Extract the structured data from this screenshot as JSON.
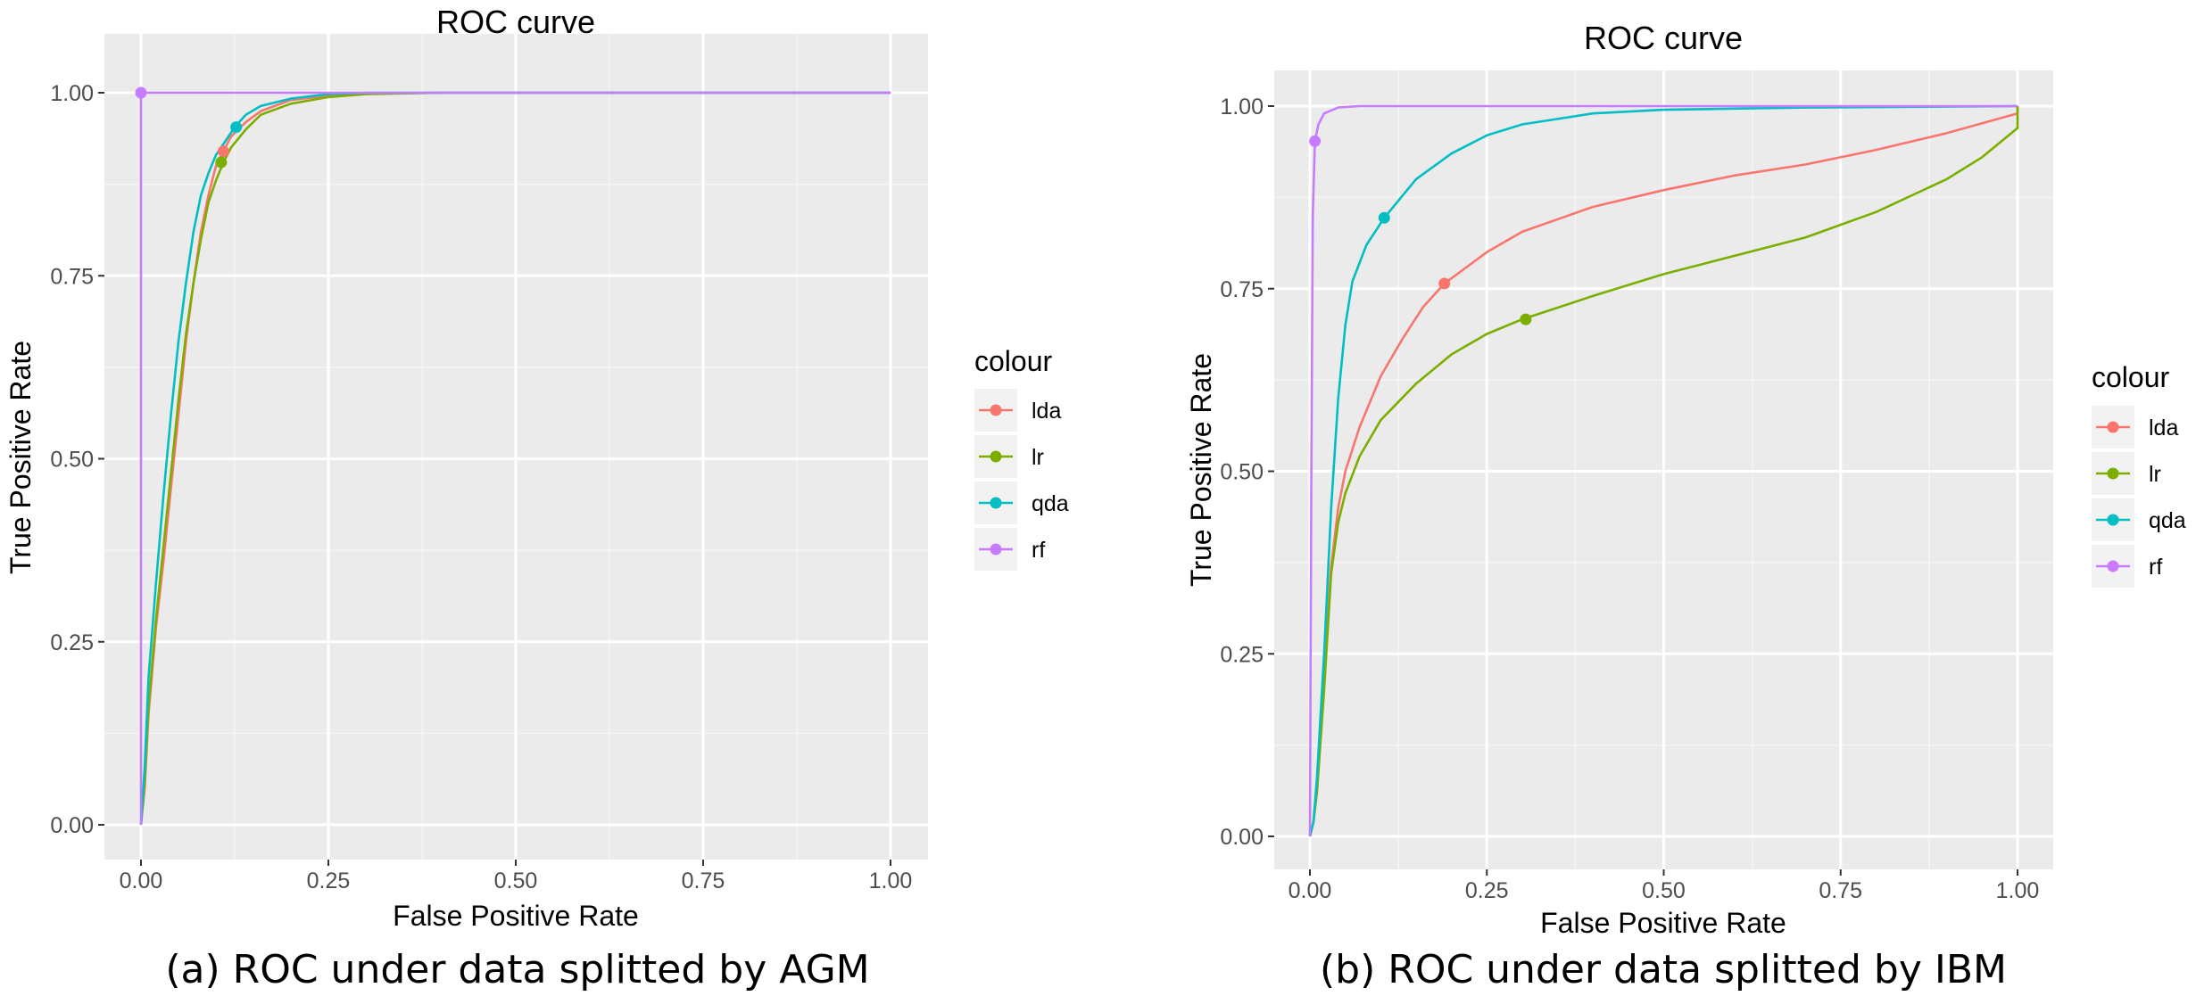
{
  "chart_data": [
    {
      "type": "line",
      "title": "ROC curve",
      "caption": "(a) ROC under data splitted by AGM",
      "xlabel": "False Positive Rate",
      "ylabel": "True Positive Rate",
      "xlim": [
        0,
        1
      ],
      "ylim": [
        0,
        1
      ],
      "x_ticks": [
        "0.00",
        "0.25",
        "0.50",
        "0.75",
        "1.00"
      ],
      "y_ticks": [
        "0.00",
        "0.25",
        "0.50",
        "0.75",
        "1.00"
      ],
      "grid": true,
      "legend": {
        "title": "colour",
        "placement": "right"
      },
      "series": [
        {
          "name": "lda",
          "color": "#F8766D",
          "points": [
            [
              0,
              0
            ],
            [
              0.005,
              0.05
            ],
            [
              0.01,
              0.15
            ],
            [
              0.02,
              0.27
            ],
            [
              0.03,
              0.36
            ],
            [
              0.04,
              0.46
            ],
            [
              0.05,
              0.56
            ],
            [
              0.06,
              0.66
            ],
            [
              0.07,
              0.74
            ],
            [
              0.08,
              0.81
            ],
            [
              0.09,
              0.86
            ],
            [
              0.1,
              0.9
            ],
            [
              0.11,
              0.92
            ],
            [
              0.12,
              0.94
            ],
            [
              0.14,
              0.96
            ],
            [
              0.16,
              0.975
            ],
            [
              0.2,
              0.99
            ],
            [
              0.25,
              0.996
            ],
            [
              0.3,
              0.999
            ],
            [
              0.4,
              1
            ],
            [
              1,
              1
            ]
          ],
          "marker": [
            0.11,
            0.92
          ]
        },
        {
          "name": "lr",
          "color": "#7CAE00",
          "points": [
            [
              0,
              0
            ],
            [
              0.005,
              0.06
            ],
            [
              0.01,
              0.16
            ],
            [
              0.02,
              0.28
            ],
            [
              0.03,
              0.38
            ],
            [
              0.04,
              0.48
            ],
            [
              0.05,
              0.58
            ],
            [
              0.06,
              0.67
            ],
            [
              0.07,
              0.74
            ],
            [
              0.08,
              0.8
            ],
            [
              0.09,
              0.85
            ],
            [
              0.1,
              0.88
            ],
            [
              0.11,
              0.905
            ],
            [
              0.12,
              0.925
            ],
            [
              0.14,
              0.95
            ],
            [
              0.16,
              0.97
            ],
            [
              0.2,
              0.985
            ],
            [
              0.25,
              0.994
            ],
            [
              0.3,
              0.998
            ],
            [
              0.4,
              1
            ],
            [
              1,
              1
            ]
          ],
          "marker": [
            0.107,
            0.905
          ]
        },
        {
          "name": "qda",
          "color": "#00BFC4",
          "points": [
            [
              0,
              0
            ],
            [
              0.005,
              0.08
            ],
            [
              0.01,
              0.2
            ],
            [
              0.02,
              0.33
            ],
            [
              0.03,
              0.45
            ],
            [
              0.04,
              0.56
            ],
            [
              0.05,
              0.66
            ],
            [
              0.06,
              0.74
            ],
            [
              0.07,
              0.81
            ],
            [
              0.08,
              0.86
            ],
            [
              0.09,
              0.89
            ],
            [
              0.1,
              0.915
            ],
            [
              0.11,
              0.93
            ],
            [
              0.125,
              0.953
            ],
            [
              0.14,
              0.97
            ],
            [
              0.16,
              0.982
            ],
            [
              0.2,
              0.992
            ],
            [
              0.25,
              0.998
            ],
            [
              0.3,
              1
            ],
            [
              1,
              1
            ]
          ],
          "marker": [
            0.127,
            0.953
          ]
        },
        {
          "name": "rf",
          "color": "#C77CFF",
          "points": [
            [
              0,
              0
            ],
            [
              0,
              1
            ],
            [
              1,
              1
            ]
          ],
          "marker": [
            0,
            1
          ]
        }
      ]
    },
    {
      "type": "line",
      "title": "ROC curve",
      "caption": "(b) ROC under data splitted by IBM",
      "xlabel": "False Positive Rate",
      "ylabel": "True Positive Rate",
      "xlim": [
        0,
        1
      ],
      "ylim": [
        0,
        1
      ],
      "x_ticks": [
        "0.00",
        "0.25",
        "0.50",
        "0.75",
        "1.00"
      ],
      "y_ticks": [
        "0.00",
        "0.25",
        "0.50",
        "0.75",
        "1.00"
      ],
      "grid": true,
      "legend": {
        "title": "colour",
        "placement": "right"
      },
      "series": [
        {
          "name": "lda",
          "color": "#F8766D",
          "points": [
            [
              0,
              0
            ],
            [
              0.005,
              0.02
            ],
            [
              0.01,
              0.07
            ],
            [
              0.02,
              0.22
            ],
            [
              0.03,
              0.37
            ],
            [
              0.04,
              0.45
            ],
            [
              0.05,
              0.5
            ],
            [
              0.07,
              0.56
            ],
            [
              0.1,
              0.63
            ],
            [
              0.13,
              0.68
            ],
            [
              0.16,
              0.725
            ],
            [
              0.19,
              0.757
            ],
            [
              0.25,
              0.8
            ],
            [
              0.3,
              0.828
            ],
            [
              0.4,
              0.862
            ],
            [
              0.5,
              0.885
            ],
            [
              0.6,
              0.905
            ],
            [
              0.7,
              0.92
            ],
            [
              0.8,
              0.94
            ],
            [
              0.9,
              0.963
            ],
            [
              1,
              0.99
            ],
            [
              1,
              1
            ]
          ],
          "marker": [
            0.19,
            0.757
          ]
        },
        {
          "name": "lr",
          "color": "#7CAE00",
          "points": [
            [
              0,
              0
            ],
            [
              0.005,
              0.02
            ],
            [
              0.01,
              0.06
            ],
            [
              0.02,
              0.2
            ],
            [
              0.03,
              0.36
            ],
            [
              0.04,
              0.43
            ],
            [
              0.05,
              0.47
            ],
            [
              0.07,
              0.52
            ],
            [
              0.1,
              0.57
            ],
            [
              0.15,
              0.62
            ],
            [
              0.2,
              0.66
            ],
            [
              0.25,
              0.688
            ],
            [
              0.3,
              0.708
            ],
            [
              0.4,
              0.74
            ],
            [
              0.5,
              0.77
            ],
            [
              0.6,
              0.795
            ],
            [
              0.7,
              0.82
            ],
            [
              0.8,
              0.855
            ],
            [
              0.9,
              0.9
            ],
            [
              0.95,
              0.93
            ],
            [
              1,
              0.97
            ],
            [
              1,
              1
            ]
          ],
          "marker": [
            0.305,
            0.708
          ]
        },
        {
          "name": "qda",
          "color": "#00BFC4",
          "points": [
            [
              0,
              0
            ],
            [
              0.005,
              0.02
            ],
            [
              0.01,
              0.08
            ],
            [
              0.02,
              0.25
            ],
            [
              0.03,
              0.45
            ],
            [
              0.04,
              0.6
            ],
            [
              0.05,
              0.7
            ],
            [
              0.06,
              0.76
            ],
            [
              0.08,
              0.81
            ],
            [
              0.105,
              0.847
            ],
            [
              0.15,
              0.9
            ],
            [
              0.2,
              0.935
            ],
            [
              0.25,
              0.96
            ],
            [
              0.3,
              0.975
            ],
            [
              0.4,
              0.99
            ],
            [
              0.5,
              0.995
            ],
            [
              0.7,
              0.998
            ],
            [
              1,
              1
            ]
          ],
          "marker": [
            0.105,
            0.847
          ]
        },
        {
          "name": "rf",
          "color": "#C77CFF",
          "points": [
            [
              0,
              0
            ],
            [
              0.002,
              0.5
            ],
            [
              0.004,
              0.85
            ],
            [
              0.007,
              0.952
            ],
            [
              0.012,
              0.975
            ],
            [
              0.02,
              0.99
            ],
            [
              0.04,
              0.998
            ],
            [
              0.07,
              1
            ],
            [
              1,
              1
            ]
          ],
          "marker": [
            0.007,
            0.952
          ]
        }
      ]
    }
  ]
}
